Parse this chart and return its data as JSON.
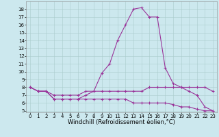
{
  "title": "",
  "xlabel": "Windchill (Refroidissement éolien,°C)",
  "background_color": "#cce8ee",
  "line_color": "#993399",
  "grid_color": "#aacccc",
  "x_values": [
    0,
    1,
    2,
    3,
    4,
    5,
    6,
    7,
    8,
    9,
    10,
    11,
    12,
    13,
    14,
    15,
    16,
    17,
    18,
    19,
    20,
    21,
    22,
    23
  ],
  "line1": [
    8.0,
    7.5,
    7.5,
    6.5,
    6.5,
    6.5,
    6.5,
    7.0,
    7.5,
    9.8,
    11.0,
    14.0,
    16.0,
    18.0,
    18.2,
    17.0,
    17.0,
    10.5,
    8.5,
    8.0,
    7.5,
    7.0,
    5.5,
    5.0
  ],
  "line2": [
    8.0,
    7.5,
    7.5,
    7.0,
    7.0,
    7.0,
    7.0,
    7.5,
    7.5,
    7.5,
    7.5,
    7.5,
    7.5,
    7.5,
    7.5,
    8.0,
    8.0,
    8.0,
    8.0,
    8.0,
    8.0,
    8.0,
    8.0,
    7.5
  ],
  "line3": [
    8.0,
    7.5,
    7.5,
    6.5,
    6.5,
    6.5,
    6.5,
    6.5,
    6.5,
    6.5,
    6.5,
    6.5,
    6.5,
    6.0,
    6.0,
    6.0,
    6.0,
    6.0,
    5.8,
    5.5,
    5.5,
    5.2,
    5.0,
    5.0
  ],
  "ylim": [
    4.8,
    19.0
  ],
  "yticks": [
    5,
    6,
    7,
    8,
    9,
    10,
    11,
    12,
    13,
    14,
    15,
    16,
    17,
    18
  ],
  "xlim": [
    -0.5,
    23.5
  ],
  "xticks": [
    0,
    1,
    2,
    3,
    4,
    5,
    6,
    7,
    8,
    9,
    10,
    11,
    12,
    13,
    14,
    15,
    16,
    17,
    18,
    19,
    20,
    21,
    22,
    23
  ],
  "marker": "+",
  "markersize": 3,
  "linewidth": 0.8,
  "tick_fontsize": 5,
  "label_fontsize": 6
}
